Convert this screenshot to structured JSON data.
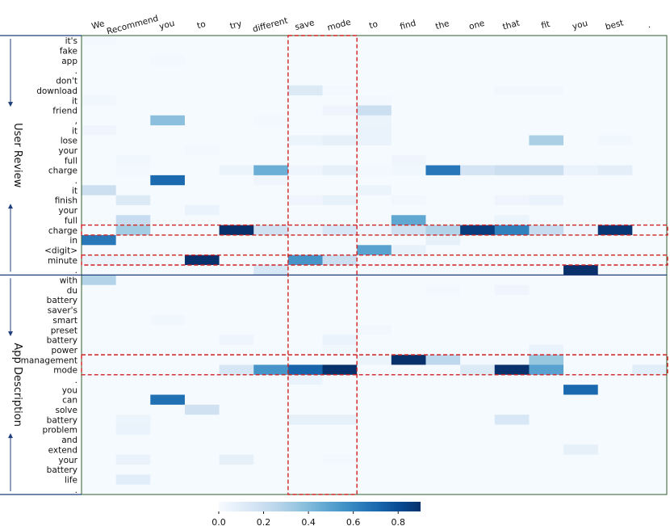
{
  "chart_data": {
    "type": "heatmap",
    "title": "",
    "x_tokens": [
      "We",
      "Recommend",
      "you",
      "to",
      "try",
      "different",
      "save",
      "mode",
      "to",
      "find",
      "the",
      "one",
      "that",
      "fit",
      "you",
      "best",
      "."
    ],
    "y_tokens": [
      "it's",
      "fake",
      "app",
      ".",
      "don't",
      "download",
      "it",
      "friend",
      ",",
      "it",
      "lose",
      "your",
      "full",
      "charge",
      ".",
      "it",
      "finish",
      "your",
      "full",
      "charge",
      "in",
      "<digit>",
      "minute",
      ".",
      "with",
      "du",
      "battery",
      "saver's",
      "smart",
      "preset",
      "battery",
      "power",
      "management",
      "mode",
      ".",
      "you",
      "can",
      "solve",
      "battery",
      "problem",
      "and",
      "extend",
      "your",
      "battery",
      "life",
      "."
    ],
    "groups": [
      {
        "name": "User Review",
        "start_row": 0,
        "end_row": 23
      },
      {
        "name": "App Description",
        "start_row": 24,
        "end_row": 45
      }
    ],
    "colorbar": {
      "colormap": "Blues",
      "min": 0.0,
      "max": 0.9,
      "ticks": [
        0.0,
        0.2,
        0.4,
        0.6,
        0.8
      ],
      "tick_labels": [
        "0.0",
        "0.2",
        "0.4",
        "0.6",
        "0.8"
      ]
    },
    "highlight_rows": [
      19,
      22,
      32,
      33
    ],
    "highlight_cols": [
      6,
      7
    ],
    "values": [
      [
        0.02,
        0.01,
        0.01,
        0.01,
        0.01,
        0.01,
        0.01,
        0.01,
        0.01,
        0.01,
        0.01,
        0.01,
        0.01,
        0.01,
        0.01,
        0.01,
        0.01
      ],
      [
        0.01,
        0.01,
        0.01,
        0.01,
        0.01,
        0.01,
        0.01,
        0.01,
        0.01,
        0.01,
        0.01,
        0.01,
        0.01,
        0.01,
        0.01,
        0.01,
        0.01
      ],
      [
        0.01,
        0.01,
        0.02,
        0.01,
        0.01,
        0.01,
        0.01,
        0.01,
        0.01,
        0.01,
        0.01,
        0.01,
        0.01,
        0.01,
        0.01,
        0.01,
        0.01
      ],
      [
        0.01,
        0.01,
        0.01,
        0.01,
        0.01,
        0.01,
        0.01,
        0.01,
        0.01,
        0.01,
        0.01,
        0.01,
        0.01,
        0.01,
        0.01,
        0.01,
        0.01
      ],
      [
        0.01,
        0.01,
        0.01,
        0.01,
        0.01,
        0.01,
        0.01,
        0.01,
        0.01,
        0.01,
        0.01,
        0.01,
        0.01,
        0.01,
        0.01,
        0.01,
        0.01
      ],
      [
        0.01,
        0.01,
        0.01,
        0.01,
        0.01,
        0.01,
        0.12,
        0.02,
        0.01,
        0.01,
        0.01,
        0.01,
        0.03,
        0.03,
        0.01,
        0.01,
        0.01
      ],
      [
        0.03,
        0.01,
        0.01,
        0.01,
        0.01,
        0.01,
        0.01,
        0.01,
        0.02,
        0.01,
        0.01,
        0.01,
        0.01,
        0.01,
        0.01,
        0.01,
        0.01
      ],
      [
        0.01,
        0.01,
        0.01,
        0.01,
        0.01,
        0.01,
        0.01,
        0.04,
        0.2,
        0.01,
        0.01,
        0.01,
        0.01,
        0.01,
        0.01,
        0.01,
        0.01
      ],
      [
        0.01,
        0.01,
        0.38,
        0.01,
        0.01,
        0.02,
        0.01,
        0.01,
        0.05,
        0.01,
        0.01,
        0.01,
        0.01,
        0.01,
        0.01,
        0.01,
        0.01
      ],
      [
        0.04,
        0.01,
        0.01,
        0.01,
        0.01,
        0.01,
        0.01,
        0.01,
        0.06,
        0.01,
        0.01,
        0.01,
        0.01,
        0.01,
        0.01,
        0.01,
        0.01
      ],
      [
        0.01,
        0.01,
        0.01,
        0.01,
        0.01,
        0.01,
        0.05,
        0.08,
        0.06,
        0.01,
        0.01,
        0.01,
        0.01,
        0.3,
        0.01,
        0.03,
        0.01
      ],
      [
        0.01,
        0.01,
        0.01,
        0.02,
        0.01,
        0.01,
        0.01,
        0.01,
        0.01,
        0.01,
        0.01,
        0.01,
        0.01,
        0.01,
        0.01,
        0.01,
        0.01
      ],
      [
        0.01,
        0.03,
        0.01,
        0.01,
        0.01,
        0.01,
        0.01,
        0.01,
        0.01,
        0.04,
        0.01,
        0.01,
        0.01,
        0.01,
        0.01,
        0.01,
        0.01
      ],
      [
        0.01,
        0.02,
        0.01,
        0.01,
        0.05,
        0.45,
        0.04,
        0.08,
        0.02,
        0.03,
        0.65,
        0.16,
        0.2,
        0.2,
        0.06,
        0.09,
        0.01
      ],
      [
        0.01,
        0.01,
        0.7,
        0.01,
        0.01,
        0.04,
        0.01,
        0.01,
        0.01,
        0.01,
        0.01,
        0.01,
        0.01,
        0.01,
        0.01,
        0.01,
        0.01
      ],
      [
        0.2,
        0.01,
        0.01,
        0.01,
        0.01,
        0.01,
        0.01,
        0.01,
        0.05,
        0.01,
        0.01,
        0.01,
        0.01,
        0.01,
        0.01,
        0.01,
        0.01
      ],
      [
        0.01,
        0.12,
        0.01,
        0.01,
        0.01,
        0.01,
        0.04,
        0.07,
        0.01,
        0.03,
        0.01,
        0.01,
        0.04,
        0.06,
        0.01,
        0.01,
        0.01
      ],
      [
        0.01,
        0.01,
        0.01,
        0.06,
        0.01,
        0.01,
        0.01,
        0.01,
        0.01,
        0.01,
        0.01,
        0.01,
        0.01,
        0.01,
        0.01,
        0.01,
        0.01
      ],
      [
        0.01,
        0.22,
        0.01,
        0.01,
        0.01,
        0.01,
        0.01,
        0.01,
        0.01,
        0.48,
        0.01,
        0.01,
        0.05,
        0.01,
        0.01,
        0.01,
        0.01
      ],
      [
        0.01,
        0.32,
        0.01,
        0.01,
        0.92,
        0.18,
        0.05,
        0.14,
        0.04,
        0.18,
        0.28,
        0.86,
        0.62,
        0.22,
        0.04,
        0.88,
        0.01
      ],
      [
        0.65,
        0.01,
        0.01,
        0.01,
        0.01,
        0.01,
        0.01,
        0.01,
        0.01,
        0.01,
        0.08,
        0.01,
        0.01,
        0.01,
        0.01,
        0.01,
        0.01
      ],
      [
        0.01,
        0.01,
        0.01,
        0.01,
        0.01,
        0.01,
        0.01,
        0.01,
        0.5,
        0.07,
        0.01,
        0.01,
        0.01,
        0.01,
        0.01,
        0.01,
        0.01
      ],
      [
        0.06,
        0.04,
        0.01,
        0.92,
        0.01,
        0.01,
        0.55,
        0.2,
        0.02,
        0.01,
        0.01,
        0.01,
        0.01,
        0.01,
        0.01,
        0.01,
        0.01
      ],
      [
        0.01,
        0.01,
        0.01,
        0.01,
        0.01,
        0.14,
        0.01,
        0.01,
        0.01,
        0.01,
        0.01,
        0.01,
        0.01,
        0.01,
        0.92,
        0.01,
        0.01
      ],
      [
        0.28,
        0.01,
        0.01,
        0.01,
        0.01,
        0.01,
        0.01,
        0.01,
        0.01,
        0.01,
        0.01,
        0.01,
        0.01,
        0.01,
        0.01,
        0.01,
        0.01
      ],
      [
        0.01,
        0.01,
        0.01,
        0.01,
        0.01,
        0.01,
        0.01,
        0.01,
        0.01,
        0.01,
        0.02,
        0.01,
        0.04,
        0.01,
        0.01,
        0.01,
        0.01
      ],
      [
        0.01,
        0.01,
        0.01,
        0.01,
        0.01,
        0.01,
        0.01,
        0.01,
        0.01,
        0.01,
        0.01,
        0.01,
        0.01,
        0.01,
        0.01,
        0.01,
        0.01
      ],
      [
        0.01,
        0.01,
        0.01,
        0.01,
        0.01,
        0.01,
        0.01,
        0.01,
        0.01,
        0.01,
        0.01,
        0.01,
        0.01,
        0.01,
        0.01,
        0.01,
        0.01
      ],
      [
        0.01,
        0.01,
        0.03,
        0.01,
        0.01,
        0.01,
        0.01,
        0.01,
        0.01,
        0.01,
        0.01,
        0.01,
        0.01,
        0.01,
        0.01,
        0.01,
        0.01
      ],
      [
        0.01,
        0.01,
        0.01,
        0.01,
        0.01,
        0.01,
        0.01,
        0.01,
        0.03,
        0.01,
        0.01,
        0.01,
        0.01,
        0.01,
        0.01,
        0.01,
        0.01
      ],
      [
        0.01,
        0.01,
        0.01,
        0.01,
        0.04,
        0.01,
        0.01,
        0.06,
        0.01,
        0.01,
        0.01,
        0.01,
        0.01,
        0.01,
        0.01,
        0.01,
        0.01
      ],
      [
        0.01,
        0.01,
        0.01,
        0.01,
        0.01,
        0.01,
        0.01,
        0.03,
        0.01,
        0.01,
        0.01,
        0.01,
        0.01,
        0.06,
        0.01,
        0.01,
        0.01
      ],
      [
        0.01,
        0.01,
        0.01,
        0.01,
        0.01,
        0.01,
        0.01,
        0.01,
        0.05,
        0.95,
        0.25,
        0.02,
        0.03,
        0.35,
        0.01,
        0.01,
        0.01
      ],
      [
        0.01,
        0.01,
        0.01,
        0.01,
        0.15,
        0.55,
        0.72,
        0.95,
        0.01,
        0.01,
        0.01,
        0.12,
        0.92,
        0.5,
        0.01,
        0.01,
        0.1
      ],
      [
        0.01,
        0.01,
        0.01,
        0.01,
        0.01,
        0.01,
        0.06,
        0.01,
        0.01,
        0.01,
        0.01,
        0.01,
        0.01,
        0.01,
        0.01,
        0.01,
        0.01
      ],
      [
        0.01,
        0.01,
        0.01,
        0.01,
        0.01,
        0.01,
        0.01,
        0.01,
        0.01,
        0.01,
        0.01,
        0.01,
        0.01,
        0.01,
        0.7,
        0.01,
        0.01
      ],
      [
        0.01,
        0.01,
        0.68,
        0.01,
        0.01,
        0.01,
        0.01,
        0.01,
        0.01,
        0.01,
        0.01,
        0.01,
        0.01,
        0.01,
        0.01,
        0.01,
        0.01
      ],
      [
        0.01,
        0.01,
        0.01,
        0.18,
        0.01,
        0.01,
        0.01,
        0.01,
        0.01,
        0.01,
        0.01,
        0.01,
        0.01,
        0.01,
        0.01,
        0.01,
        0.01
      ],
      [
        0.01,
        0.05,
        0.01,
        0.01,
        0.01,
        0.01,
        0.08,
        0.08,
        0.01,
        0.01,
        0.01,
        0.01,
        0.14,
        0.01,
        0.01,
        0.01,
        0.01
      ],
      [
        0.01,
        0.06,
        0.01,
        0.01,
        0.01,
        0.01,
        0.01,
        0.01,
        0.01,
        0.01,
        0.01,
        0.01,
        0.01,
        0.01,
        0.01,
        0.01,
        0.01
      ],
      [
        0.01,
        0.01,
        0.01,
        0.01,
        0.01,
        0.01,
        0.01,
        0.01,
        0.01,
        0.01,
        0.01,
        0.01,
        0.01,
        0.01,
        0.01,
        0.01,
        0.01
      ],
      [
        0.01,
        0.01,
        0.01,
        0.01,
        0.01,
        0.01,
        0.01,
        0.01,
        0.01,
        0.01,
        0.01,
        0.01,
        0.01,
        0.01,
        0.08,
        0.01,
        0.01
      ],
      [
        0.01,
        0.06,
        0.01,
        0.01,
        0.08,
        0.01,
        0.01,
        0.02,
        0.01,
        0.01,
        0.01,
        0.01,
        0.01,
        0.01,
        0.01,
        0.01,
        0.01
      ],
      [
        0.01,
        0.01,
        0.01,
        0.01,
        0.01,
        0.01,
        0.01,
        0.01,
        0.01,
        0.01,
        0.01,
        0.01,
        0.01,
        0.01,
        0.01,
        0.01,
        0.01
      ],
      [
        0.01,
        0.1,
        0.01,
        0.01,
        0.01,
        0.01,
        0.01,
        0.01,
        0.01,
        0.01,
        0.01,
        0.01,
        0.01,
        0.01,
        0.01,
        0.01,
        0.01
      ],
      [
        0.01,
        0.01,
        0.01,
        0.01,
        0.01,
        0.01,
        0.01,
        0.01,
        0.01,
        0.01,
        0.01,
        0.01,
        0.01,
        0.01,
        0.01,
        0.01,
        0.01
      ]
    ]
  }
}
